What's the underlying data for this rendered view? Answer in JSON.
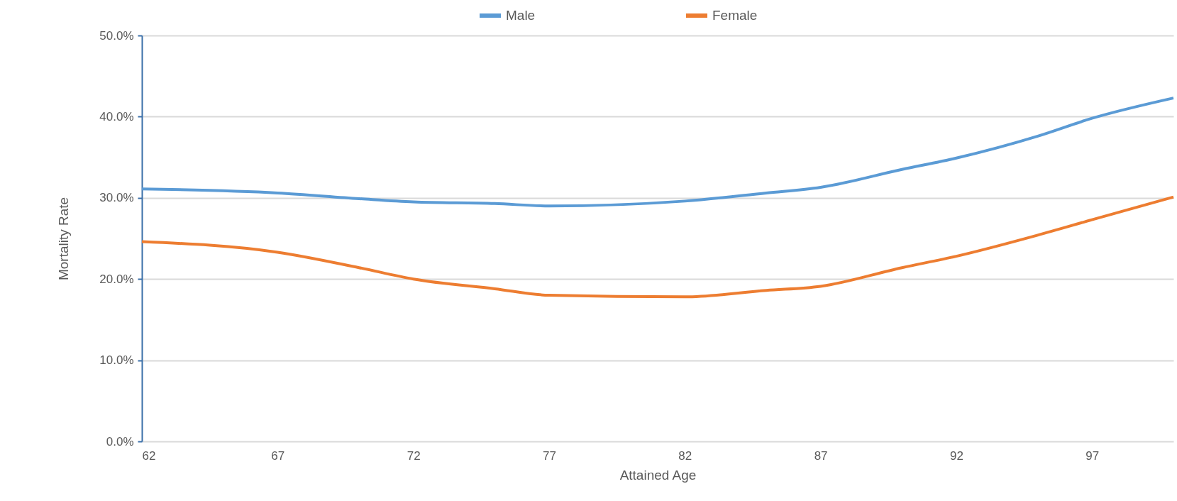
{
  "chart_data": {
    "type": "line",
    "xlabel": "Attained Age",
    "ylabel": "Mortality Rate",
    "x": [
      62,
      67,
      70,
      72,
      75,
      77,
      82,
      85,
      87,
      90,
      92,
      95,
      97,
      100
    ],
    "series": [
      {
        "name": "Male",
        "color": "#5b9bd5",
        "values": [
          31.1,
          30.6,
          29.9,
          29.5,
          29.3,
          29.0,
          29.6,
          30.6,
          31.3,
          33.5,
          34.9,
          37.6,
          39.8,
          42.3
        ]
      },
      {
        "name": "Female",
        "color": "#ed7d31",
        "values": [
          24.6,
          23.3,
          21.4,
          20.0,
          18.8,
          18.0,
          17.8,
          18.6,
          19.1,
          21.4,
          22.8,
          25.4,
          27.3,
          30.1
        ]
      }
    ],
    "xlim": [
      62,
      100
    ],
    "xticks": [
      62,
      67,
      72,
      77,
      82,
      87,
      92,
      97
    ],
    "ylim": [
      0,
      50
    ],
    "yticks": [
      {
        "value": 0,
        "label": "0.0%"
      },
      {
        "value": 10,
        "label": "10.0%"
      },
      {
        "value": 20,
        "label": "20.0%"
      },
      {
        "value": 30,
        "label": "30.0%"
      },
      {
        "value": 40,
        "label": "40.0%"
      },
      {
        "value": 50,
        "label": "50.0%"
      }
    ],
    "grid": "y",
    "legend": "top",
    "line_style": "solid",
    "marker": "none"
  }
}
